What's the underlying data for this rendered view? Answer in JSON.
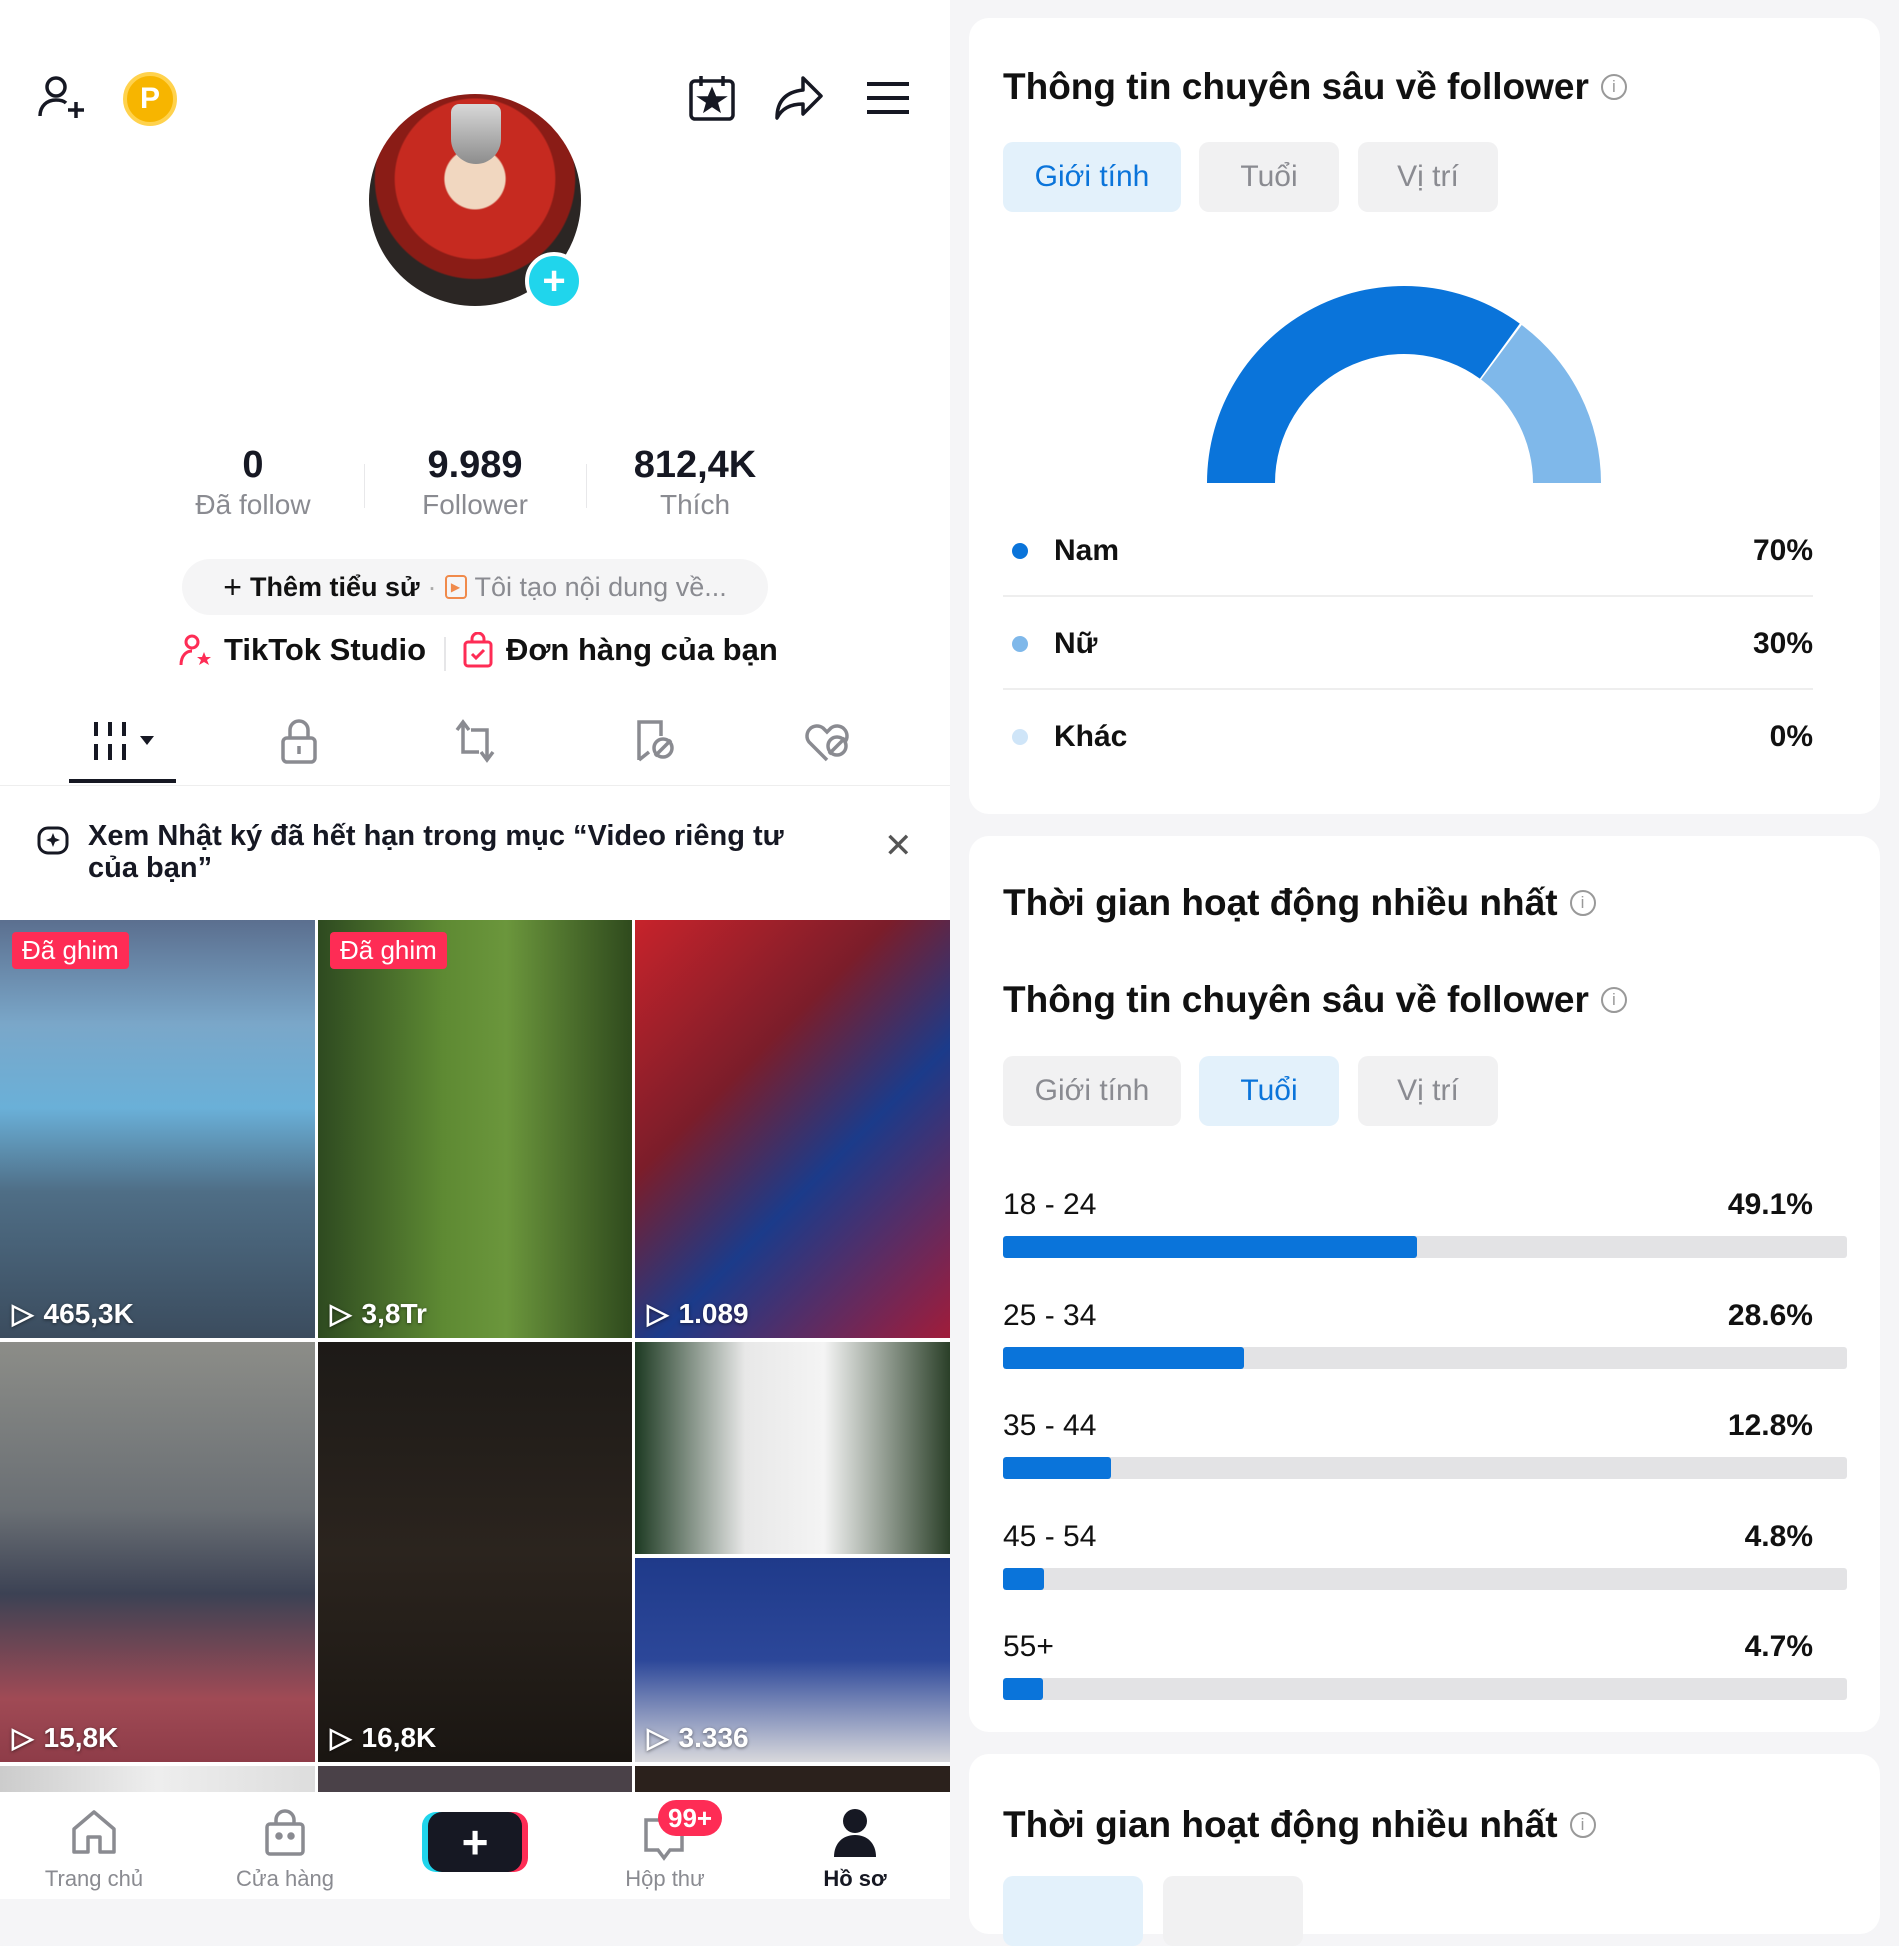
{
  "profile": {
    "stats": [
      {
        "value": "0",
        "label": "Đã follow"
      },
      {
        "value": "9.989",
        "label": "Follower"
      },
      {
        "value": "812,4K",
        "label": "Thích"
      }
    ],
    "coin_letter": "P",
    "bio_add": "Thêm tiểu sử",
    "bio_placeholder": "Tôi tạo nội dung về...",
    "studio": "TikTok Studio",
    "orders": "Đơn hàng của bạn",
    "notice": "Xem Nhật ký đã hết hạn trong mục “Video riêng tư của bạn”",
    "videos": [
      {
        "pinned": "Đã ghim",
        "views": "465,3K"
      },
      {
        "pinned": "Đã ghim",
        "views": "3,8Tr"
      },
      {
        "views": "1.089"
      },
      {
        "views": "15,8K"
      },
      {
        "views": "16,8K"
      },
      {
        "views": "3.336"
      }
    ]
  },
  "bottom_nav": {
    "home": "Trang chủ",
    "shop": "Cửa hàng",
    "inbox": "Hộp thư",
    "inbox_badge": "99+",
    "profile": "Hồ sơ"
  },
  "insights": {
    "title": "Thông tin chuyên sâu về follower",
    "active_title": "Thời gian hoạt động nhiều nhất",
    "tabs": [
      "Giới tính",
      "Tuổi",
      "Vị trí"
    ]
  },
  "chart_data": [
    {
      "type": "pie",
      "title": "Giới tính",
      "categories": [
        "Nam",
        "Nữ",
        "Khác"
      ],
      "values": [
        70,
        30,
        0
      ],
      "labels": [
        "70%",
        "30%",
        "0%"
      ],
      "colors": [
        "#0a74da",
        "#7fb8ea",
        "#cfe5f8"
      ]
    },
    {
      "type": "bar",
      "title": "Tuổi",
      "categories": [
        "18 - 24",
        "25 - 34",
        "35 - 44",
        "45 - 54",
        "55+"
      ],
      "values": [
        49.1,
        28.6,
        12.8,
        4.8,
        4.7
      ],
      "labels": [
        "49.1%",
        "28.6%",
        "12.8%",
        "4.8%",
        "4.7%"
      ],
      "xlim": [
        0,
        100
      ]
    }
  ],
  "colors": {
    "accent": "#0a74da",
    "tiktok_red": "#fe2c55"
  }
}
